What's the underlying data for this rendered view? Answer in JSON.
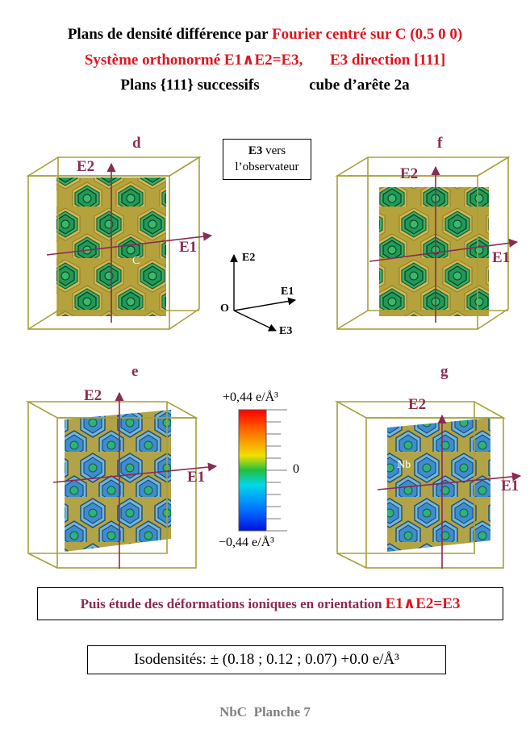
{
  "title": {
    "line1_black": "Plans de densité différence par",
    "line1_red": "Fourier centré sur C (0.5 0 0)",
    "line2_a": "Système orthonormé E1∧E2=E3,",
    "line2_b": "E3 direction [111]",
    "line3_a": "Plans {111} successifs",
    "line3_b": "cube d’arête 2a"
  },
  "panels": [
    {
      "id": "d",
      "label": "d",
      "e1": "E1",
      "e2": "E2",
      "atom": "C",
      "pattern": "green"
    },
    {
      "id": "f",
      "label": "f",
      "e1": "E1",
      "e2": "E2",
      "atom": "",
      "pattern": "green"
    },
    {
      "id": "e",
      "label": "e",
      "e1": "E1",
      "e2": "E2",
      "atom": "",
      "pattern": "blue"
    },
    {
      "id": "g",
      "label": "g",
      "e1": "E1",
      "e2": "E2",
      "atom": "Nb",
      "pattern": "blue"
    }
  ],
  "observer": {
    "bold": "E3",
    "rest1": "vers",
    "rest2": "l’observateur"
  },
  "frame": {
    "e1": "E1",
    "e2": "E2",
    "e3": "E3",
    "origin": "O"
  },
  "colorbar": {
    "max": "+0,44 e/Å³",
    "mid": "0",
    "min": "−0,44 e/Å³"
  },
  "note": {
    "text": "Puis étude des déformations ioniques en orientation",
    "formula": "E1∧E2=E3"
  },
  "isodensities": "Isodensités: ± (0.18 ; 0.12 ; 0.07) +0.0 e/Å³",
  "footer": "NbC  Planche 7",
  "colors": {
    "cube": "#a5a03a",
    "axis": "#8a2b52",
    "accent_red": "#e0141e",
    "footer": "#808080"
  }
}
